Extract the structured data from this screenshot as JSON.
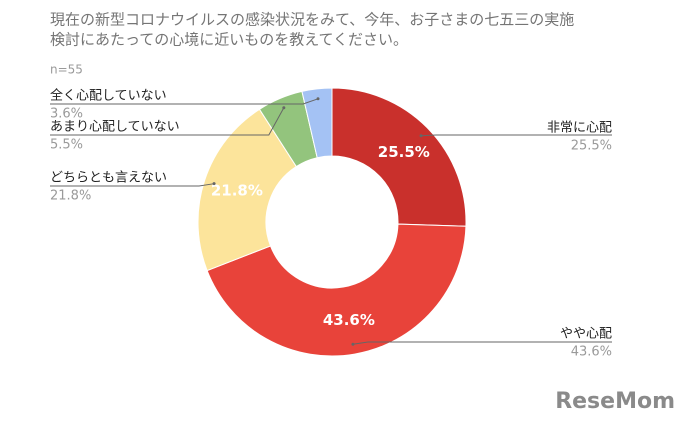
{
  "chart_data": {
    "type": "donut",
    "title": [
      "現在の新型コロナウイルスの感染状況をみて、今年、お子さまの七五三の実施",
      "検討にあたっての心境に近いものを教えてください。"
    ],
    "subtitle": "n=55",
    "categories": [
      "非常に心配",
      "やや心配",
      "どちらとも言えない",
      "あまり心配していない",
      "全く心配していない"
    ],
    "values": [
      25.5,
      43.6,
      21.8,
      5.5,
      3.6
    ],
    "value_labels": [
      "25.5%",
      "43.6%",
      "21.8%",
      "5.5%",
      "3.6%"
    ],
    "colors": [
      "#c9302c",
      "#e8433a",
      "#fce49b",
      "#93c47d",
      "#a4c2f4"
    ],
    "watermark": "ReseMom"
  }
}
